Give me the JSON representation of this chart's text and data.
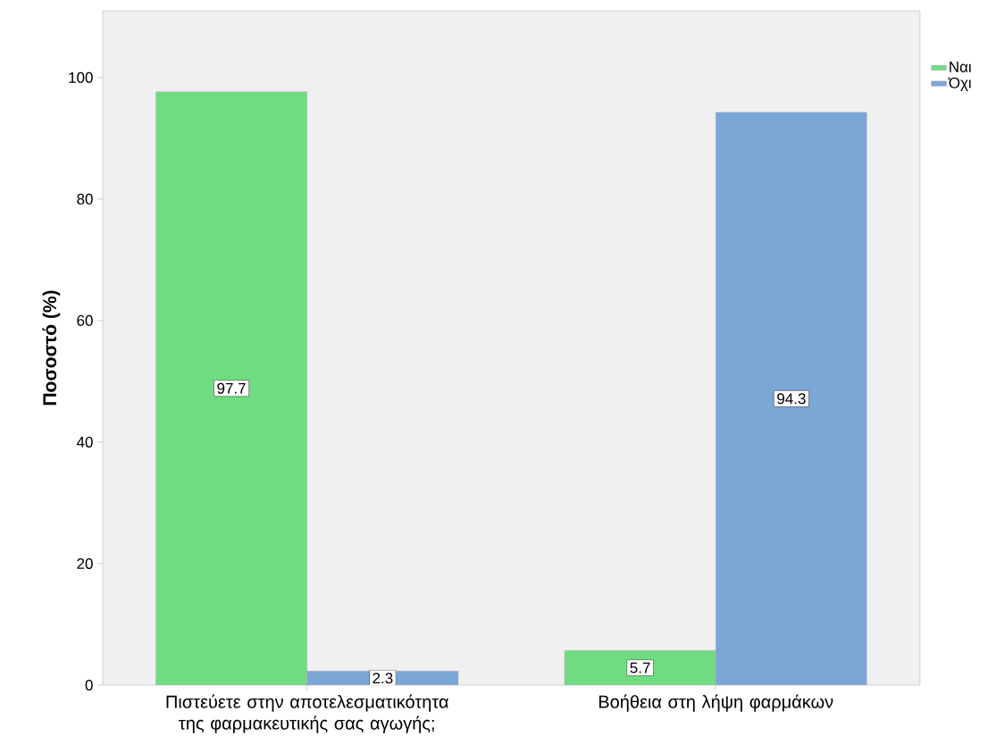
{
  "chart_data": {
    "type": "bar",
    "ylabel": "Ποσοστό (%)",
    "categories": [
      "Πιστεύετε στην αποτελεσματικότητα της φαρμακευτικής σας αγωγής;",
      "Βοήθεια στη λήψη φαρμάκων"
    ],
    "series": [
      {
        "name": "Ναι",
        "color": "#70dc82",
        "values": [
          97.7,
          5.7
        ]
      },
      {
        "name": "Όχι",
        "color": "#7ba7d6",
        "values": [
          2.3,
          94.3
        ]
      }
    ],
    "ylim": [
      0,
      111
    ],
    "yticks": [
      0,
      20,
      40,
      60,
      80,
      100
    ],
    "data_labels": true,
    "legend": "right",
    "grid": false
  }
}
